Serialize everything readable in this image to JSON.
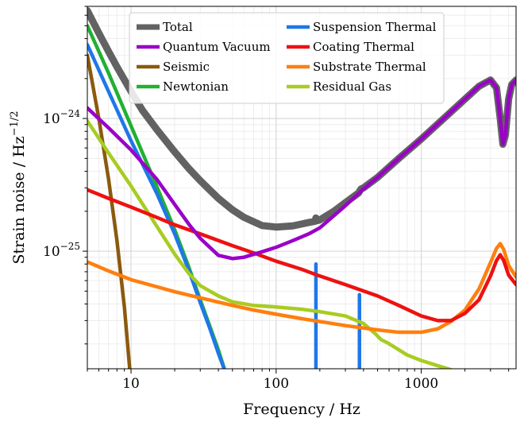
{
  "chart_data": {
    "type": "line",
    "title": "",
    "xlabel": "Frequency / Hz",
    "ylabel": "Strain noise / Hz",
    "ylabel_exponent": "−1/2",
    "xscale": "log",
    "yscale": "log",
    "xlim": [
      5,
      4500
    ],
    "ylim": [
      1.3e-26,
      7e-24
    ],
    "grid": true,
    "legend_position": "top",
    "x_ticks": [
      {
        "value": 10,
        "label": "10"
      },
      {
        "value": 100,
        "label": "100"
      },
      {
        "value": 1000,
        "label": "1000"
      }
    ],
    "y_ticks": [
      {
        "value": 1e-25,
        "base": "10",
        "exp": "−25"
      },
      {
        "value": 1e-24,
        "base": "10",
        "exp": "−24"
      }
    ],
    "series": [
      {
        "name": "Total",
        "color": "#626262",
        "width": 9,
        "points": [
          [
            5,
            6.5e-24
          ],
          [
            6,
            4.4e-24
          ],
          [
            7,
            3.2e-24
          ],
          [
            8,
            2.45e-24
          ],
          [
            10,
            1.6e-24
          ],
          [
            12,
            1.15e-24
          ],
          [
            15,
            8.3e-25
          ],
          [
            20,
            5.6e-25
          ],
          [
            25,
            4.2e-25
          ],
          [
            30,
            3.4e-25
          ],
          [
            40,
            2.5e-25
          ],
          [
            50,
            2.05e-25
          ],
          [
            60,
            1.8e-25
          ],
          [
            80,
            1.56e-25
          ],
          [
            100,
            1.52e-25
          ],
          [
            130,
            1.55e-25
          ],
          [
            170,
            1.65e-25
          ],
          [
            185,
            1.68e-25
          ],
          [
            188,
            1.78e-25
          ],
          [
            192,
            1.7e-25
          ],
          [
            200,
            1.72e-25
          ],
          [
            250,
            2e-25
          ],
          [
            300,
            2.32e-25
          ],
          [
            370,
            2.75e-25
          ],
          [
            385,
            2.95e-25
          ],
          [
            400,
            3e-25
          ],
          [
            500,
            3.6e-25
          ],
          [
            700,
            5e-25
          ],
          [
            1000,
            7e-25
          ],
          [
            1500,
            1.05e-24
          ],
          [
            2000,
            1.4e-24
          ],
          [
            2500,
            1.75e-24
          ],
          [
            3000,
            1.95e-24
          ],
          [
            3300,
            1.7e-24
          ],
          [
            3500,
            1e-24
          ],
          [
            3650,
            6.4e-25
          ],
          [
            3800,
            7.5e-25
          ],
          [
            4000,
            1.4e-24
          ],
          [
            4200,
            1.8e-24
          ],
          [
            4500,
            1.95e-24
          ]
        ]
      },
      {
        "name": "Quantum Vacuum",
        "color": "#9a00c8",
        "width": 4.5,
        "points": [
          [
            5,
            1.2e-24
          ],
          [
            7,
            8.5e-25
          ],
          [
            10,
            5.8e-25
          ],
          [
            15,
            3.5e-25
          ],
          [
            20,
            2.25e-25
          ],
          [
            25,
            1.6e-25
          ],
          [
            30,
            1.25e-25
          ],
          [
            40,
            9.3e-26
          ],
          [
            50,
            8.8e-26
          ],
          [
            60,
            9e-26
          ],
          [
            80,
            9.9e-26
          ],
          [
            100,
            1.07e-25
          ],
          [
            130,
            1.2e-25
          ],
          [
            170,
            1.36e-25
          ],
          [
            200,
            1.5e-25
          ],
          [
            250,
            1.85e-25
          ],
          [
            300,
            2.2e-25
          ],
          [
            400,
            2.95e-25
          ],
          [
            500,
            3.6e-25
          ],
          [
            700,
            5e-25
          ],
          [
            1000,
            7e-25
          ],
          [
            1500,
            1.05e-24
          ],
          [
            2000,
            1.4e-24
          ],
          [
            2500,
            1.75e-24
          ],
          [
            3000,
            1.95e-24
          ],
          [
            3300,
            1.7e-24
          ],
          [
            3500,
            1e-24
          ],
          [
            3650,
            6.4e-25
          ],
          [
            3800,
            7.5e-25
          ],
          [
            4000,
            1.4e-24
          ],
          [
            4200,
            1.8e-24
          ],
          [
            4500,
            1.95e-24
          ]
        ]
      },
      {
        "name": "Seismic",
        "color": "#8b5a0f",
        "width": 4.5,
        "points": [
          [
            5,
            3e-24
          ],
          [
            6,
            1e-24
          ],
          [
            7,
            3.5e-25
          ],
          [
            8,
            1.2e-25
          ],
          [
            9,
            3.8e-26
          ],
          [
            10,
            1e-26
          ]
        ]
      },
      {
        "name": "Newtonian",
        "color": "#22b033",
        "width": 4.5,
        "points": [
          [
            5,
            5e-24
          ],
          [
            7,
            2.2e-24
          ],
          [
            10,
            8.8e-25
          ],
          [
            15,
            3.1e-25
          ],
          [
            20,
            1.45e-25
          ],
          [
            25,
            7.6e-26
          ],
          [
            30,
            4.3e-26
          ],
          [
            35,
            2.7e-26
          ],
          [
            40,
            1.8e-26
          ],
          [
            45,
            1.2e-26
          ]
        ]
      },
      {
        "name": "Suspension Thermal",
        "color": "#1f77e8",
        "width": 4.5,
        "points": [
          [
            5,
            3.6e-24
          ],
          [
            7,
            1.6e-24
          ],
          [
            10,
            6.8e-25
          ],
          [
            15,
            2.75e-25
          ],
          [
            20,
            1.35e-25
          ],
          [
            25,
            7.2e-26
          ],
          [
            30,
            4.1e-26
          ],
          [
            35,
            2.6e-26
          ],
          [
            40,
            1.7e-26
          ],
          [
            45,
            1.2e-26
          ]
        ],
        "spikes": [
          {
            "x": 188,
            "peak": 8e-26
          },
          {
            "x": 375,
            "peak": 4.7e-26
          }
        ]
      },
      {
        "name": "Coating Thermal",
        "color": "#ee1111",
        "width": 4.5,
        "points": [
          [
            5,
            2.9e-25
          ],
          [
            7,
            2.5e-25
          ],
          [
            10,
            2.15e-25
          ],
          [
            15,
            1.8e-25
          ],
          [
            20,
            1.58e-25
          ],
          [
            30,
            1.35e-25
          ],
          [
            50,
            1.1e-25
          ],
          [
            70,
            9.7e-26
          ],
          [
            100,
            8.4e-26
          ],
          [
            150,
            7.3e-26
          ],
          [
            200,
            6.5e-26
          ],
          [
            300,
            5.6e-26
          ],
          [
            500,
            4.6e-26
          ],
          [
            700,
            3.9e-26
          ],
          [
            1000,
            3.25e-26
          ],
          [
            1300,
            3e-26
          ],
          [
            1600,
            3e-26
          ],
          [
            2000,
            3.4e-26
          ],
          [
            2500,
            4.3e-26
          ],
          [
            3000,
            6.5e-26
          ],
          [
            3300,
            8.5e-26
          ],
          [
            3500,
            9.4e-26
          ],
          [
            3700,
            8.5e-26
          ],
          [
            4000,
            6.6e-26
          ],
          [
            4500,
            5.6e-26
          ]
        ]
      },
      {
        "name": "Substrate Thermal",
        "color": "#ff7f0e",
        "width": 4.5,
        "points": [
          [
            5,
            8.3e-26
          ],
          [
            7,
            7.1e-26
          ],
          [
            10,
            6.1e-26
          ],
          [
            15,
            5.4e-26
          ],
          [
            20,
            4.95e-26
          ],
          [
            30,
            4.45e-26
          ],
          [
            50,
            3.9e-26
          ],
          [
            70,
            3.6e-26
          ],
          [
            100,
            3.35e-26
          ],
          [
            150,
            3.1e-26
          ],
          [
            200,
            2.95e-26
          ],
          [
            300,
            2.75e-26
          ],
          [
            500,
            2.55e-26
          ],
          [
            700,
            2.45e-26
          ],
          [
            1000,
            2.45e-26
          ],
          [
            1300,
            2.6e-26
          ],
          [
            1600,
            2.95e-26
          ],
          [
            2000,
            3.6e-26
          ],
          [
            2500,
            5.2e-26
          ],
          [
            3000,
            8.2e-26
          ],
          [
            3300,
            1.05e-25
          ],
          [
            3500,
            1.14e-25
          ],
          [
            3700,
            1.03e-25
          ],
          [
            4000,
            7.8e-26
          ],
          [
            4500,
            6.4e-26
          ]
        ]
      },
      {
        "name": "Residual Gas",
        "color": "#a8cc22",
        "width": 4.5,
        "points": [
          [
            5,
            9.6e-25
          ],
          [
            7,
            5.5e-25
          ],
          [
            10,
            3.1e-25
          ],
          [
            15,
            1.55e-25
          ],
          [
            20,
            9.5e-26
          ],
          [
            25,
            6.8e-26
          ],
          [
            30,
            5.5e-26
          ],
          [
            40,
            4.6e-26
          ],
          [
            50,
            4.15e-26
          ],
          [
            70,
            3.9e-26
          ],
          [
            100,
            3.8e-26
          ],
          [
            150,
            3.65e-26
          ],
          [
            200,
            3.5e-26
          ],
          [
            300,
            3.25e-26
          ],
          [
            400,
            2.85e-26
          ],
          [
            480,
            2.4e-26
          ],
          [
            530,
            2.15e-26
          ],
          [
            580,
            2.05e-26
          ],
          [
            650,
            1.9e-26
          ],
          [
            800,
            1.65e-26
          ],
          [
            1000,
            1.5e-26
          ],
          [
            1300,
            1.37e-26
          ],
          [
            1600,
            1.28e-26
          ],
          [
            1800,
            1.22e-26
          ]
        ]
      }
    ]
  }
}
